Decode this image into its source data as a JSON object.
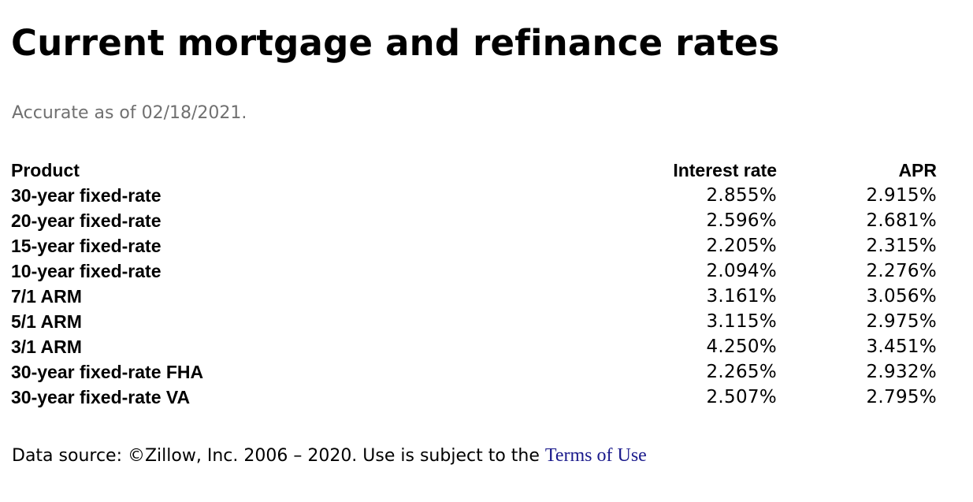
{
  "page": {
    "title": "Current mortgage and refinance rates",
    "as_of": "Accurate as of 02/18/2021."
  },
  "table": {
    "headers": [
      "Product",
      "Interest rate",
      "APR"
    ],
    "rows": [
      {
        "product": "30-year fixed-rate",
        "interest_rate": "2.855%",
        "apr": "2.915%"
      },
      {
        "product": "20-year fixed-rate",
        "interest_rate": "2.596%",
        "apr": "2.681%"
      },
      {
        "product": "15-year fixed-rate",
        "interest_rate": "2.205%",
        "apr": "2.315%"
      },
      {
        "product": "10-year fixed-rate",
        "interest_rate": "2.094%",
        "apr": "2.276%"
      },
      {
        "product": "7/1 ARM",
        "interest_rate": "3.161%",
        "apr": "3.056%"
      },
      {
        "product": "5/1 ARM",
        "interest_rate": "3.115%",
        "apr": "2.975%"
      },
      {
        "product": "3/1 ARM",
        "interest_rate": "4.250%",
        "apr": "3.451%"
      },
      {
        "product": "30-year fixed-rate FHA",
        "interest_rate": "2.265%",
        "apr": "2.932%"
      },
      {
        "product": "30-year fixed-rate VA",
        "interest_rate": "2.507%",
        "apr": "2.795%"
      }
    ]
  },
  "footer": {
    "text": "Data source: ©Zillow, Inc. 2006 – 2020. Use is subject to the ",
    "link_label": "Terms of Use",
    "link_color": "#1a1a8c"
  }
}
